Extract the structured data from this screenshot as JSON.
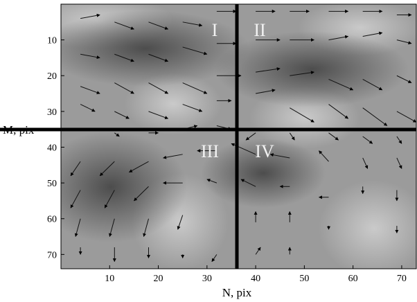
{
  "chart_data": {
    "type": "quiver",
    "xlabel": "N, pix",
    "ylabel": "M, pix",
    "xlim": [
      0,
      73
    ],
    "ylim": [
      74,
      0
    ],
    "x_ticks": [
      10,
      20,
      30,
      40,
      50,
      60,
      70
    ],
    "y_ticks": [
      10,
      20,
      30,
      40,
      50,
      60,
      70
    ],
    "quadrant_labels": [
      "I",
      "II",
      "III",
      "IV"
    ],
    "dividers": {
      "vertical_at_x": 36.5,
      "horizontal_at_y": 35
    },
    "colors": {
      "background": "#9a9a9a",
      "dark_band": "#4a4a4a",
      "divider": "#000000",
      "quadrant_text": "#f2f2f2"
    },
    "vectors_note_x_y_u_v": [
      [
        4,
        4,
        4,
        -1
      ],
      [
        11,
        5,
        4,
        2
      ],
      [
        18,
        5,
        4,
        2
      ],
      [
        25,
        5,
        4,
        1
      ],
      [
        32,
        2,
        4,
        0
      ],
      [
        40,
        2,
        4,
        0
      ],
      [
        47,
        2,
        4,
        0
      ],
      [
        55,
        2,
        4,
        0
      ],
      [
        62,
        2,
        4,
        0
      ],
      [
        69,
        3,
        3,
        0
      ],
      [
        4,
        14,
        4,
        1
      ],
      [
        11,
        14,
        4,
        2
      ],
      [
        18,
        14,
        4,
        2
      ],
      [
        25,
        12,
        5,
        2
      ],
      [
        32,
        11,
        4,
        0
      ],
      [
        40,
        10,
        5,
        0
      ],
      [
        47,
        10,
        5,
        0
      ],
      [
        55,
        10,
        4,
        -1
      ],
      [
        62,
        9,
        4,
        -1
      ],
      [
        69,
        10,
        3,
        1
      ],
      [
        4,
        23,
        4,
        2
      ],
      [
        11,
        22,
        4,
        3
      ],
      [
        18,
        22,
        4,
        3
      ],
      [
        25,
        22,
        5,
        3
      ],
      [
        32,
        20,
        5,
        0
      ],
      [
        40,
        19,
        5,
        -1
      ],
      [
        47,
        20,
        5,
        -1
      ],
      [
        55,
        21,
        5,
        3
      ],
      [
        62,
        21,
        4,
        3
      ],
      [
        69,
        20,
        3,
        2
      ],
      [
        4,
        28,
        3,
        2
      ],
      [
        11,
        30,
        3,
        2
      ],
      [
        18,
        30,
        4,
        2
      ],
      [
        25,
        28,
        4,
        2
      ],
      [
        32,
        27,
        3,
        0
      ],
      [
        40,
        25,
        4,
        -1
      ],
      [
        47,
        29,
        5,
        4
      ],
      [
        55,
        28,
        4,
        4
      ],
      [
        62,
        29,
        5,
        5
      ],
      [
        69,
        30,
        4,
        3
      ],
      [
        4,
        36,
        0,
        0
      ],
      [
        11,
        36,
        1,
        1
      ],
      [
        18,
        36,
        2,
        0
      ],
      [
        25,
        35,
        3,
        -1
      ],
      [
        32,
        34,
        3,
        1
      ],
      [
        40,
        36,
        -2,
        2
      ],
      [
        47,
        36,
        1,
        2
      ],
      [
        55,
        36,
        2,
        2
      ],
      [
        62,
        37,
        2,
        2
      ],
      [
        69,
        37,
        1,
        2
      ],
      [
        4,
        44,
        -2,
        4
      ],
      [
        11,
        44,
        -3,
        4
      ],
      [
        18,
        44,
        -4,
        3
      ],
      [
        25,
        42,
        -4,
        1
      ],
      [
        32,
        41,
        -4,
        0
      ],
      [
        40,
        42,
        -5,
        -3
      ],
      [
        47,
        43,
        -4,
        -1
      ],
      [
        55,
        44,
        -2,
        -3
      ],
      [
        62,
        43,
        1,
        3
      ],
      [
        69,
        43,
        1,
        3
      ],
      [
        4,
        52,
        -2,
        5
      ],
      [
        11,
        52,
        -2,
        5
      ],
      [
        18,
        51,
        -3,
        4
      ],
      [
        25,
        50,
        -4,
        0
      ],
      [
        32,
        50,
        -2,
        -1
      ],
      [
        40,
        51,
        -3,
        -2
      ],
      [
        47,
        51,
        -2,
        0
      ],
      [
        55,
        54,
        -2,
        0
      ],
      [
        62,
        51,
        0,
        2
      ],
      [
        69,
        52,
        0,
        3
      ],
      [
        4,
        60,
        -1,
        5
      ],
      [
        11,
        60,
        -1,
        5
      ],
      [
        18,
        60,
        -1,
        5
      ],
      [
        25,
        59,
        -1,
        4
      ],
      [
        32,
        60,
        0,
        0
      ],
      [
        40,
        61,
        0,
        -3
      ],
      [
        47,
        61,
        0,
        -3
      ],
      [
        55,
        62,
        0,
        1
      ],
      [
        62,
        62,
        0,
        0
      ],
      [
        69,
        62,
        0,
        2
      ],
      [
        4,
        68,
        0,
        2
      ],
      [
        11,
        68,
        0,
        4
      ],
      [
        18,
        68,
        0,
        3
      ],
      [
        25,
        70,
        0,
        1
      ],
      [
        32,
        70,
        -1,
        2
      ],
      [
        40,
        70,
        1,
        -2
      ],
      [
        47,
        70,
        0,
        -2
      ],
      [
        55,
        70,
        0,
        0
      ],
      [
        62,
        70,
        0,
        0
      ],
      [
        69,
        70,
        0,
        0
      ]
    ]
  }
}
